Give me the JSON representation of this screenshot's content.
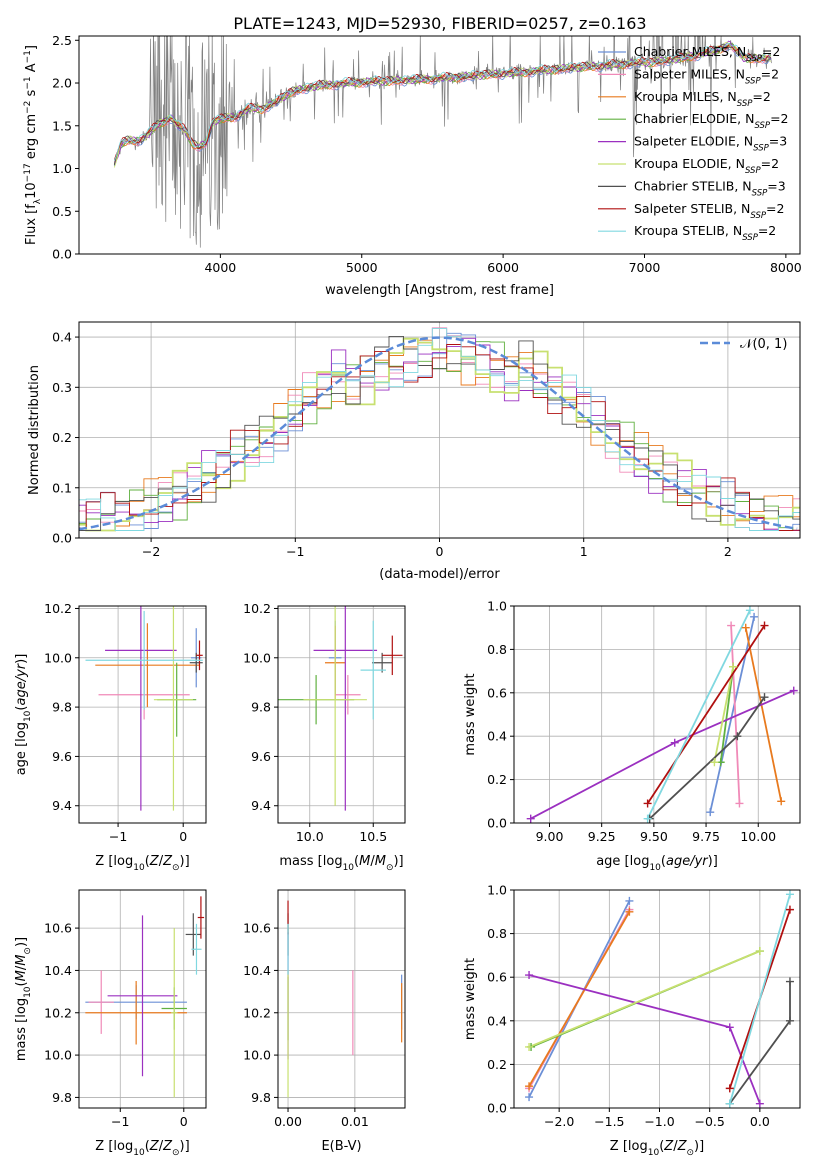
{
  "figure": {
    "title": "PLATE=1243, MJD=52930, FIBERID=0257, z=0.163"
  },
  "models": [
    {
      "name": "Chabrier MILES, N_SSP=2",
      "label_pre": "Chabrier MILES, N",
      "label_sub": "SSP",
      "label_post": "=2",
      "color": "#6b8fd6"
    },
    {
      "name": "Salpeter MILES, N_SSP=2",
      "label_pre": "Salpeter MILES, N",
      "label_sub": "SSP",
      "label_post": "=2",
      "color": "#f08ab8"
    },
    {
      "name": "Kroupa MILES, N_SSP=2",
      "label_pre": "Kroupa MILES, N",
      "label_sub": "SSP",
      "label_post": "=2",
      "color": "#e87a1e"
    },
    {
      "name": "Chabrier ELODIE, N_SSP=2",
      "label_pre": "Chabrier ELODIE, N",
      "label_sub": "SSP",
      "label_post": "=2",
      "color": "#60b040"
    },
    {
      "name": "Salpeter ELODIE, N_SSP=3",
      "label_pre": "Salpeter ELODIE, N",
      "label_sub": "SSP",
      "label_post": "=3",
      "color": "#9b30c0"
    },
    {
      "name": "Kroupa ELODIE, N_SSP=2",
      "label_pre": "Kroupa ELODIE, N",
      "label_sub": "SSP",
      "label_post": "=2",
      "color": "#c8e070"
    },
    {
      "name": "Chabrier STELIB, N_SSP=3",
      "label_pre": "Chabrier STELIB, N",
      "label_sub": "SSP",
      "label_post": "=3",
      "color": "#505050"
    },
    {
      "name": "Salpeter STELIB, N_SSP=2",
      "label_pre": "Salpeter STELIB, N",
      "label_sub": "SSP",
      "label_post": "=2",
      "color": "#b01010"
    },
    {
      "name": "Kroupa STELIB, N_SSP=2",
      "label_pre": "Kroupa STELIB, N",
      "label_sub": "SSP",
      "label_post": "=2",
      "color": "#80d8e0"
    }
  ],
  "chart_data": [
    {
      "id": "spectrum",
      "type": "line",
      "xlabel": "wavelength [Angstrom, rest frame]",
      "ylabel": "Flux [f_λ 10^-17 erg cm^-2 s^-1 A^-1]",
      "xlim": [
        3000,
        8100
      ],
      "ylim": [
        0,
        2.55
      ],
      "xticks": [
        4000,
        5000,
        6000,
        7000,
        8000
      ],
      "yticks": [
        0.0,
        0.5,
        1.0,
        1.5,
        2.0,
        2.5
      ],
      "grid": false,
      "legend": "upper-right",
      "data_color": "#808080",
      "continuum": [
        [
          3250,
          1.05
        ],
        [
          3300,
          1.3
        ],
        [
          3350,
          1.33
        ],
        [
          3400,
          1.32
        ],
        [
          3450,
          1.35
        ],
        [
          3500,
          1.42
        ],
        [
          3550,
          1.5
        ],
        [
          3600,
          1.55
        ],
        [
          3650,
          1.6
        ],
        [
          3700,
          1.5
        ],
        [
          3750,
          1.45
        ],
        [
          3800,
          1.3
        ],
        [
          3850,
          1.25
        ],
        [
          3900,
          1.3
        ],
        [
          3950,
          1.55
        ],
        [
          4000,
          1.58
        ],
        [
          4100,
          1.6
        ],
        [
          4200,
          1.7
        ],
        [
          4300,
          1.7
        ],
        [
          4400,
          1.78
        ],
        [
          4500,
          1.9
        ],
        [
          4700,
          1.97
        ],
        [
          4900,
          2.0
        ],
        [
          5100,
          2.02
        ],
        [
          5300,
          2.03
        ],
        [
          5500,
          2.05
        ],
        [
          5700,
          2.07
        ],
        [
          5900,
          2.1
        ],
        [
          6100,
          2.12
        ],
        [
          6300,
          2.15
        ],
        [
          6500,
          2.18
        ],
        [
          6700,
          2.2
        ],
        [
          6900,
          2.23
        ],
        [
          7100,
          2.25
        ],
        [
          7300,
          2.3
        ],
        [
          7500,
          2.38
        ],
        [
          7600,
          2.45
        ],
        [
          7700,
          2.3
        ],
        [
          7800,
          2.28
        ],
        [
          7900,
          2.3
        ]
      ]
    },
    {
      "id": "residuals",
      "type": "histogram",
      "xlabel": "(data-model)/error",
      "ylabel": "Normed distribution",
      "xlim": [
        -2.5,
        2.5
      ],
      "ylim": [
        0,
        0.43
      ],
      "xticks": [
        -2,
        -1,
        0,
        1,
        2
      ],
      "yticks": [
        0.0,
        0.1,
        0.2,
        0.3,
        0.4
      ],
      "grid": true,
      "legend": "upper-right",
      "gaussian_label": "𝒩(0, 1)",
      "gaussian_color": "#5b8bd8",
      "bin_width": 0.1
    },
    {
      "id": "age-vs-Z",
      "type": "scatter",
      "xlabel": "Z [log10(Z/Z⊙)]",
      "ylabel": "age  [log10(age/yr)]",
      "xlim": [
        -1.6,
        0.35
      ],
      "ylim": [
        9.33,
        10.21
      ],
      "xticks": [
        -1,
        0
      ],
      "yticks": [
        9.4,
        9.6,
        9.8,
        10.0,
        10.2
      ],
      "grid": true,
      "points": [
        {
          "model": 0,
          "x": 0.2,
          "y": 10.0,
          "xerr": 0.08,
          "yerr": 0.12
        },
        {
          "model": 1,
          "x": -0.6,
          "y": 9.85,
          "xerr": 0.7,
          "yerr": 0.1
        },
        {
          "model": 2,
          "x": -0.55,
          "y": 9.97,
          "xerr": 0.8,
          "yerr": 0.17
        },
        {
          "model": 3,
          "x": -0.1,
          "y": 9.83,
          "xerr": 0.3,
          "yerr": 0.15
        },
        {
          "model": 4,
          "x": -0.65,
          "y": 10.03,
          "xerr": 0.55,
          "yerr": 0.65
        },
        {
          "model": 5,
          "x": -0.15,
          "y": 9.83,
          "xerr": 0.3,
          "yerr": 0.45
        },
        {
          "model": 6,
          "x": 0.2,
          "y": 9.98,
          "xerr": 0.1,
          "yerr": 0.04
        },
        {
          "model": 7,
          "x": 0.25,
          "y": 10.01,
          "xerr": 0.05,
          "yerr": 0.06
        },
        {
          "model": 8,
          "x": -0.6,
          "y": 9.99,
          "xerr": 0.9,
          "yerr": 0.2
        }
      ]
    },
    {
      "id": "age-vs-mass",
      "type": "scatter",
      "xlabel": "mass [log10(M/M⊙)]",
      "ylabel": "",
      "xlim": [
        9.75,
        10.75
      ],
      "ylim": [
        9.33,
        10.21
      ],
      "xticks": [
        10.0,
        10.5
      ],
      "yticks": [
        9.4,
        9.6,
        9.8,
        10.0,
        10.2
      ],
      "grid": true,
      "points": [
        {
          "model": 0,
          "x": 10.2,
          "y": 10.0,
          "xerr": 0.05,
          "yerr": 0.15
        },
        {
          "model": 1,
          "x": 10.3,
          "y": 9.85,
          "xerr": 0.1,
          "yerr": 0.08
        },
        {
          "model": 2,
          "x": 10.2,
          "y": 9.98,
          "xerr": 0.08,
          "yerr": 0.15
        },
        {
          "model": 3,
          "x": 10.05,
          "y": 9.83,
          "xerr": 0.3,
          "yerr": 0.1
        },
        {
          "model": 4,
          "x": 10.28,
          "y": 10.03,
          "xerr": 0.25,
          "yerr": 0.65
        },
        {
          "model": 5,
          "x": 10.2,
          "y": 9.83,
          "xerr": 0.25,
          "yerr": 0.43
        },
        {
          "model": 6,
          "x": 10.57,
          "y": 9.98,
          "xerr": 0.08,
          "yerr": 0.04
        },
        {
          "model": 7,
          "x": 10.65,
          "y": 10.01,
          "xerr": 0.08,
          "yerr": 0.08
        },
        {
          "model": 8,
          "x": 10.5,
          "y": 9.95,
          "xerr": 0.1,
          "yerr": 0.2
        }
      ]
    },
    {
      "id": "massweight-vs-age",
      "type": "line",
      "xlabel": "age  [log10(age/yr)]",
      "ylabel": "mass weight",
      "xlim": [
        8.83,
        10.2
      ],
      "ylim": [
        0,
        1.0
      ],
      "xticks": [
        9.0,
        9.25,
        9.5,
        9.75,
        10.0
      ],
      "yticks": [
        0.0,
        0.2,
        0.4,
        0.6,
        0.8,
        1.0
      ],
      "grid": true,
      "series": [
        {
          "model": 0,
          "points": [
            [
              9.77,
              0.05
            ],
            [
              9.98,
              0.95
            ]
          ]
        },
        {
          "model": 1,
          "points": [
            [
              9.91,
              0.09
            ],
            [
              9.87,
              0.91
            ]
          ]
        },
        {
          "model": 2,
          "points": [
            [
              10.11,
              0.1
            ],
            [
              9.94,
              0.9
            ]
          ]
        },
        {
          "model": 3,
          "points": [
            [
              9.82,
              0.28
            ],
            [
              9.88,
              0.72
            ]
          ]
        },
        {
          "model": 4,
          "points": [
            [
              8.91,
              0.02
            ],
            [
              9.6,
              0.37
            ],
            [
              10.17,
              0.61
            ]
          ]
        },
        {
          "model": 5,
          "points": [
            [
              9.79,
              0.28
            ],
            [
              9.88,
              0.72
            ]
          ]
        },
        {
          "model": 6,
          "points": [
            [
              9.48,
              0.02
            ],
            [
              9.9,
              0.4
            ],
            [
              10.03,
              0.58
            ]
          ]
        },
        {
          "model": 7,
          "points": [
            [
              9.47,
              0.09
            ],
            [
              10.03,
              0.91
            ]
          ]
        },
        {
          "model": 8,
          "points": [
            [
              9.47,
              0.02
            ],
            [
              9.96,
              0.98
            ]
          ]
        }
      ]
    },
    {
      "id": "mass-vs-Z",
      "type": "scatter",
      "xlabel": "Z [log10(Z/Z⊙)]",
      "ylabel": "mass [log10(M/M⊙)]",
      "xlim": [
        -1.65,
        0.35
      ],
      "ylim": [
        9.75,
        10.78
      ],
      "xticks": [
        -1,
        0
      ],
      "yticks": [
        9.8,
        10.0,
        10.2,
        10.4,
        10.6
      ],
      "grid": true,
      "points": [
        {
          "model": 0,
          "x": -0.75,
          "y": 10.25,
          "xerr": 0.8,
          "yerr": 0.08
        },
        {
          "model": 1,
          "x": -1.3,
          "y": 10.25,
          "xerr": 0.2,
          "yerr": 0.15
        },
        {
          "model": 2,
          "x": -0.75,
          "y": 10.2,
          "xerr": 0.8,
          "yerr": 0.15
        },
        {
          "model": 3,
          "x": -0.15,
          "y": 10.22,
          "xerr": 0.2,
          "yerr": 0.1
        },
        {
          "model": 4,
          "x": -0.65,
          "y": 10.28,
          "xerr": 0.55,
          "yerr": 0.38
        },
        {
          "model": 5,
          "x": -0.15,
          "y": 10.2,
          "xerr": 0.05,
          "yerr": 0.4
        },
        {
          "model": 6,
          "x": 0.15,
          "y": 10.57,
          "xerr": 0.12,
          "yerr": 0.1
        },
        {
          "model": 7,
          "x": 0.27,
          "y": 10.65,
          "xerr": 0.05,
          "yerr": 0.1
        },
        {
          "model": 8,
          "x": 0.2,
          "y": 10.5,
          "xerr": 0.08,
          "yerr": 0.12
        }
      ]
    },
    {
      "id": "mass-vs-ebv",
      "type": "scatter",
      "xlabel": "E(B-V)",
      "ylabel": "",
      "xlim": [
        -0.0015,
        0.0175
      ],
      "ylim": [
        9.75,
        10.78
      ],
      "xticks": [
        0.0,
        0.01
      ],
      "xtick_labels": [
        "0.00",
        "0.01"
      ],
      "yticks": [
        9.8,
        10.0,
        10.2,
        10.4,
        10.6
      ],
      "grid": true,
      "points": [
        {
          "model": 0,
          "x": 0.017,
          "y": 10.25,
          "xerr": 0,
          "yerr": 0.13
        },
        {
          "model": 1,
          "x": 0.0097,
          "y": 10.2,
          "xerr": 0,
          "yerr": 0.2
        },
        {
          "model": 2,
          "x": 0.017,
          "y": 10.2,
          "xerr": 0,
          "yerr": 0.14
        },
        {
          "model": 3,
          "x": 0.0,
          "y": 10.22,
          "xerr": 0,
          "yerr": 0.15
        },
        {
          "model": 4,
          "x": 0.0,
          "y": 10.28,
          "xerr": 0,
          "yerr": 0.3
        },
        {
          "model": 5,
          "x": 0.0,
          "y": 10.1,
          "xerr": 0,
          "yerr": 0.3
        },
        {
          "model": 6,
          "x": 0.0,
          "y": 10.57,
          "xerr": 0,
          "yerr": 0.1
        },
        {
          "model": 7,
          "x": 0.0,
          "y": 10.65,
          "xerr": 0,
          "yerr": 0.08
        },
        {
          "model": 8,
          "x": 0.0,
          "y": 10.5,
          "xerr": 0,
          "yerr": 0.12
        }
      ]
    },
    {
      "id": "massweight-vs-Z",
      "type": "line",
      "xlabel": "Z [log10(Z/Z⊙)]",
      "ylabel": "mass weight",
      "xlim": [
        -2.45,
        0.4
      ],
      "ylim": [
        0,
        1.0
      ],
      "xticks": [
        -2.0,
        -1.5,
        -1.0,
        -0.5,
        0.0
      ],
      "yticks": [
        0.0,
        0.2,
        0.4,
        0.6,
        0.8,
        1.0
      ],
      "grid": true,
      "series": [
        {
          "model": 0,
          "points": [
            [
              -2.3,
              0.05
            ],
            [
              -1.3,
              0.95
            ]
          ]
        },
        {
          "model": 1,
          "points": [
            [
              -2.3,
              0.09
            ],
            [
              -1.3,
              0.91
            ]
          ]
        },
        {
          "model": 2,
          "points": [
            [
              -2.3,
              0.1
            ],
            [
              -1.3,
              0.9
            ]
          ]
        },
        {
          "model": 3,
          "points": [
            [
              -2.28,
              0.28
            ],
            [
              0.0,
              0.72
            ]
          ]
        },
        {
          "model": 4,
          "points": [
            [
              -2.3,
              0.61
            ],
            [
              -0.3,
              0.37
            ],
            [
              0.0,
              0.02
            ]
          ]
        },
        {
          "model": 5,
          "points": [
            [
              -2.3,
              0.28
            ],
            [
              0.0,
              0.72
            ]
          ]
        },
        {
          "model": 6,
          "points": [
            [
              -0.3,
              0.02
            ],
            [
              0.3,
              0.4
            ],
            [
              0.3,
              0.58
            ]
          ]
        },
        {
          "model": 7,
          "points": [
            [
              -0.3,
              0.09
            ],
            [
              0.3,
              0.91
            ]
          ]
        },
        {
          "model": 8,
          "points": [
            [
              -0.3,
              0.02
            ],
            [
              0.3,
              0.98
            ]
          ]
        }
      ]
    }
  ]
}
